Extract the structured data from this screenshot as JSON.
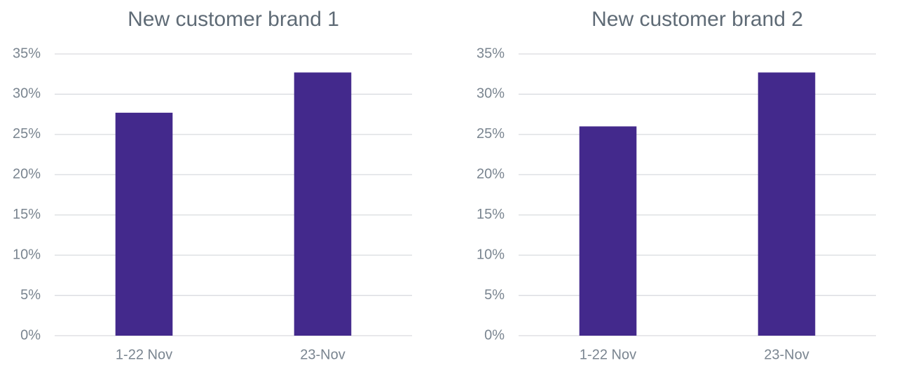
{
  "chart_data": [
    {
      "type": "bar",
      "title": "New customer brand 1",
      "categories": [
        "1-22 Nov",
        "23-Nov"
      ],
      "values": [
        27.7,
        32.7
      ],
      "color": "#43298c",
      "ylim": [
        0,
        35
      ],
      "yticks": [
        {
          "value": 0,
          "label": "0%"
        },
        {
          "value": 5,
          "label": "5%"
        },
        {
          "value": 10,
          "label": "10%"
        },
        {
          "value": 15,
          "label": "15%"
        },
        {
          "value": 20,
          "label": "20%"
        },
        {
          "value": 25,
          "label": "25%"
        },
        {
          "value": 30,
          "label": "30%"
        },
        {
          "value": 35,
          "label": "35%"
        }
      ],
      "grid": true
    },
    {
      "type": "bar",
      "title": "New customer brand 2",
      "categories": [
        "1-22 Nov",
        "23-Nov"
      ],
      "values": [
        26.0,
        32.7
      ],
      "color": "#43298c",
      "ylim": [
        0,
        35
      ],
      "yticks": [
        {
          "value": 0,
          "label": "0%"
        },
        {
          "value": 5,
          "label": "5%"
        },
        {
          "value": 10,
          "label": "10%"
        },
        {
          "value": 15,
          "label": "15%"
        },
        {
          "value": 20,
          "label": "20%"
        },
        {
          "value": 25,
          "label": "25%"
        },
        {
          "value": 30,
          "label": "30%"
        },
        {
          "value": 35,
          "label": "35%"
        }
      ],
      "grid": true
    }
  ]
}
